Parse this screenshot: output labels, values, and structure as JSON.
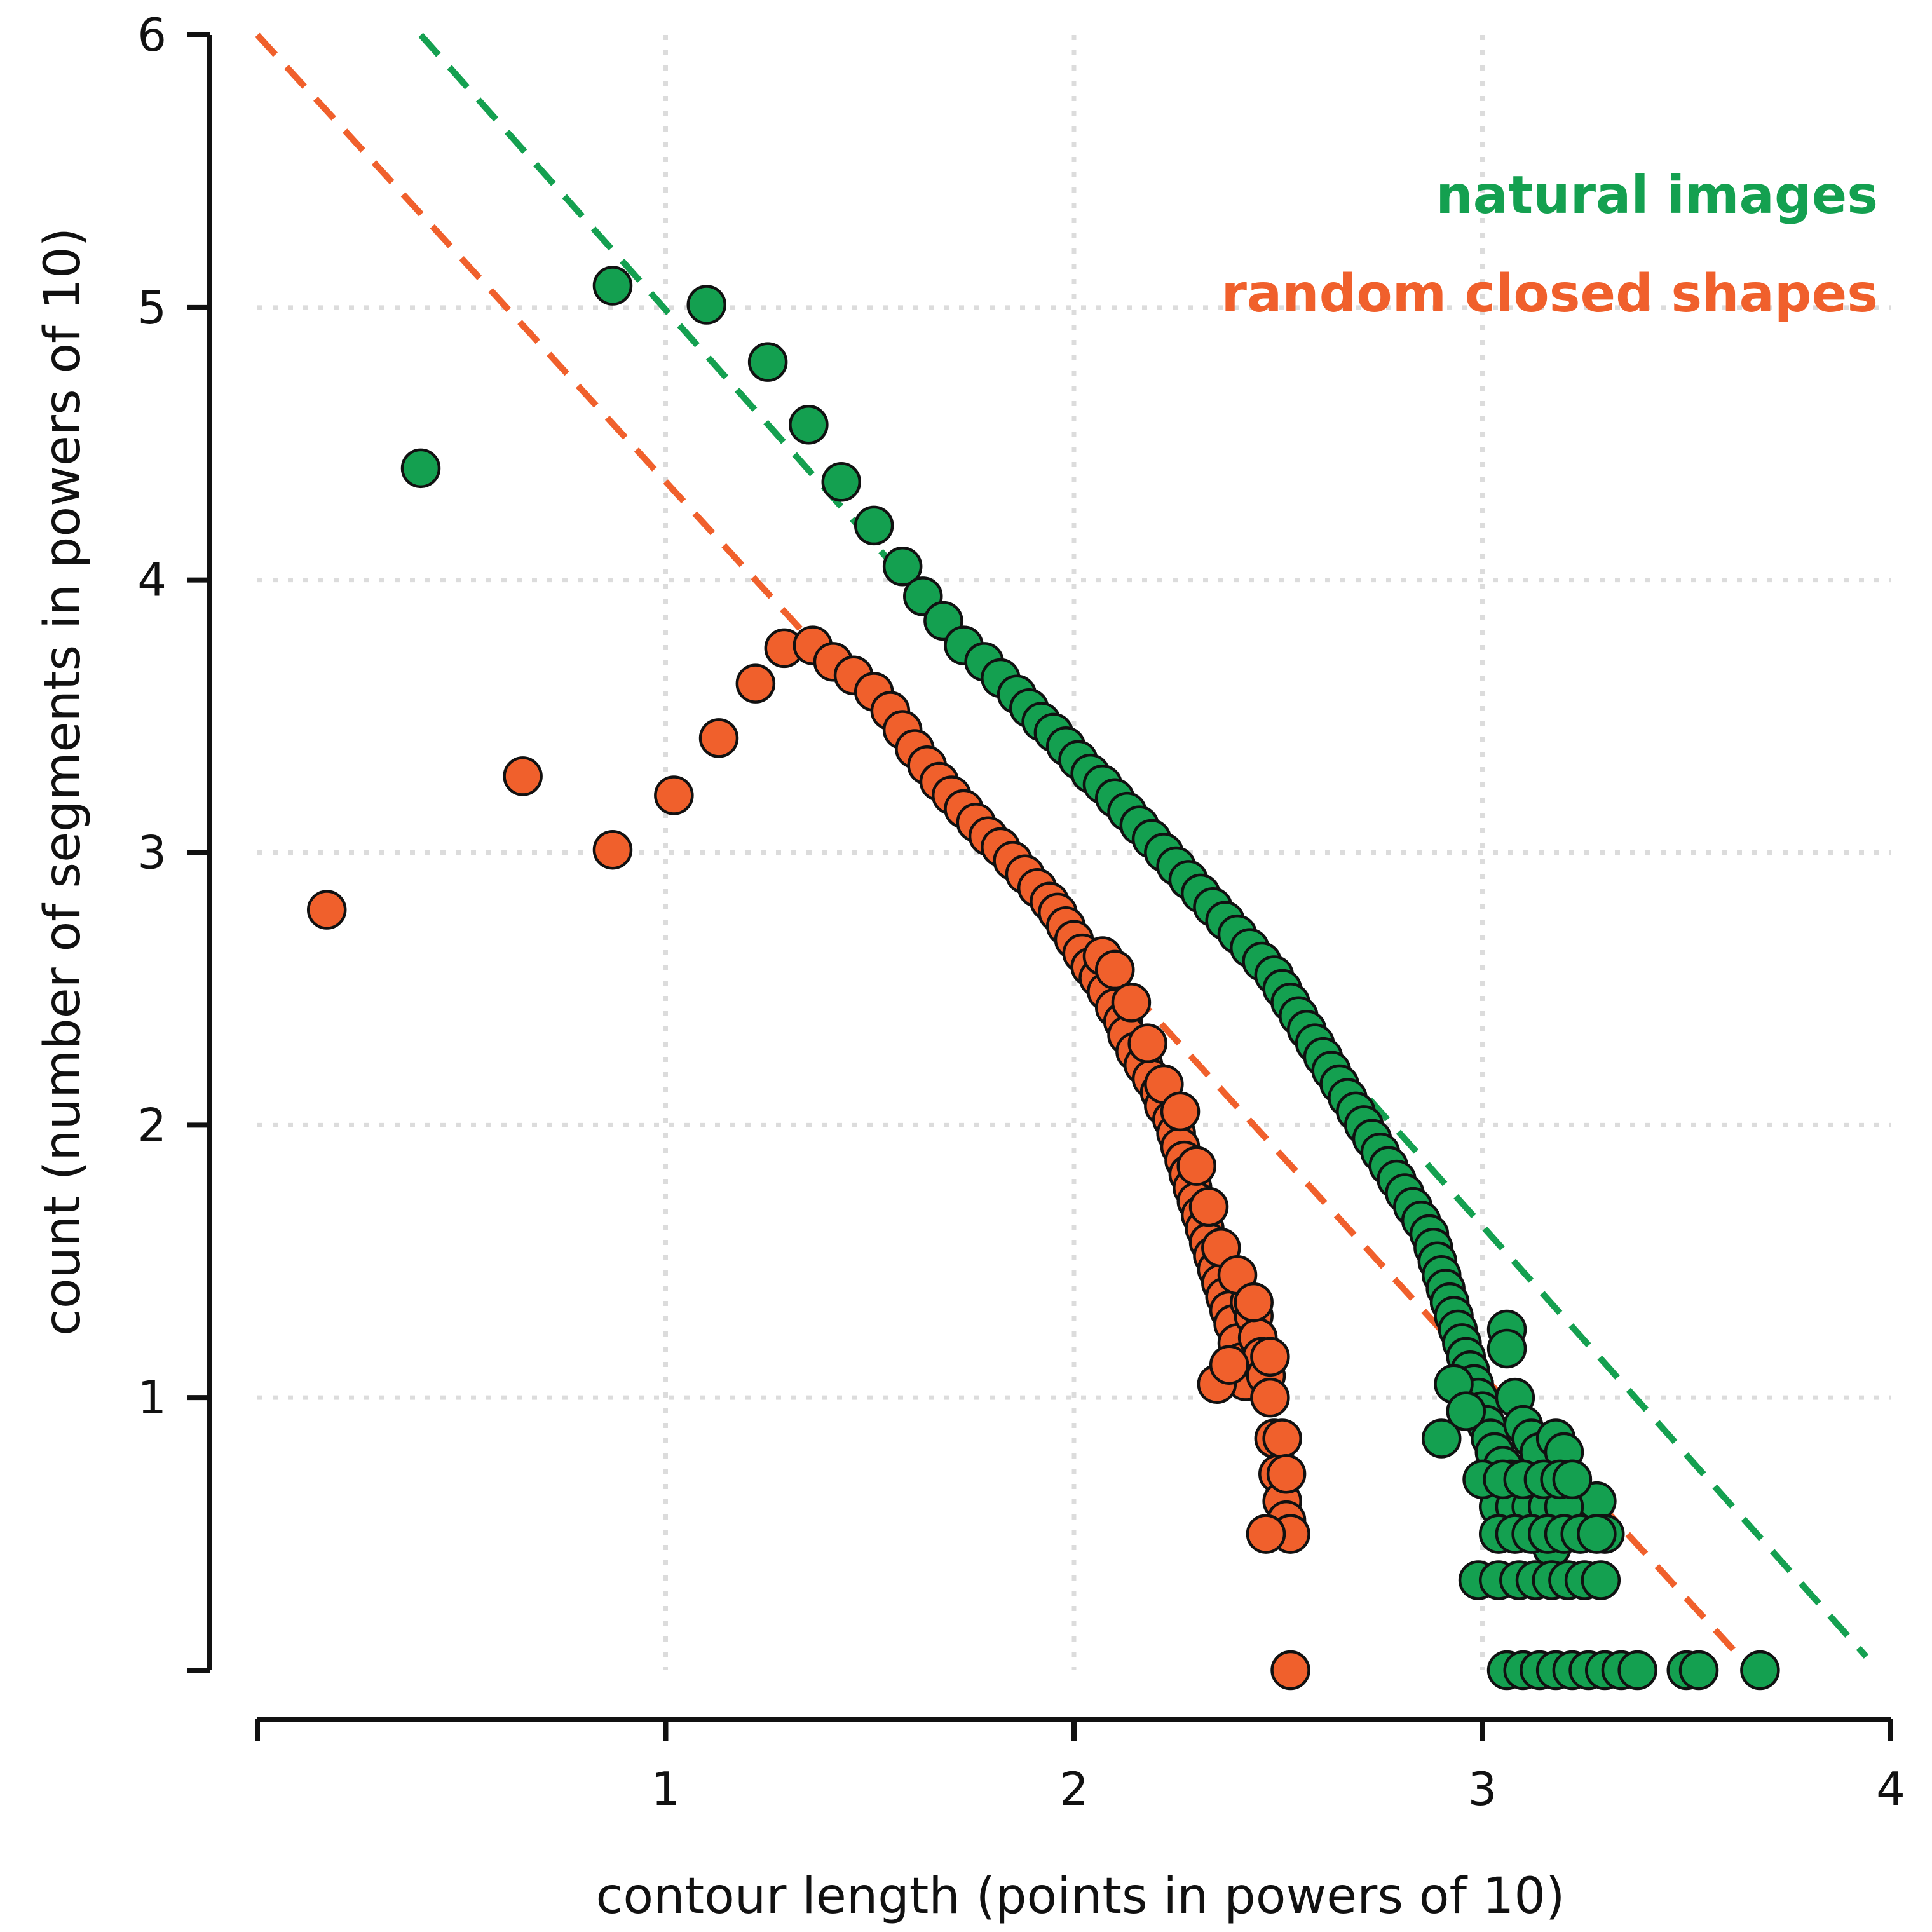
{
  "chart_data": {
    "type": "scatter",
    "xlabel": "contour length (points in powers of 10)",
    "ylabel": "count (number of segments in powers of 10)",
    "xlim": [
      0,
      4
    ],
    "ylim": [
      0,
      6
    ],
    "x_ticks": [
      "1",
      "2",
      "3",
      "4"
    ],
    "y_ticks": [
      "1",
      "2",
      "3",
      "4",
      "5",
      "6"
    ],
    "grid": true,
    "grid_style": "dotted",
    "legend_placement": "top-right",
    "series": [
      {
        "name": "natural images",
        "color": "#14a050",
        "points": [
          [
            0.4,
            4.41
          ],
          [
            0.87,
            5.08
          ],
          [
            1.1,
            5.01
          ],
          [
            1.25,
            4.8
          ],
          [
            1.35,
            4.57
          ],
          [
            1.43,
            4.36
          ],
          [
            1.51,
            4.2
          ],
          [
            1.58,
            4.05
          ],
          [
            1.63,
            3.94
          ],
          [
            1.68,
            3.85
          ],
          [
            1.73,
            3.76
          ],
          [
            1.78,
            3.7
          ],
          [
            1.82,
            3.64
          ],
          [
            1.86,
            3.58
          ],
          [
            1.89,
            3.53
          ],
          [
            1.92,
            3.48
          ],
          [
            1.95,
            3.44
          ],
          [
            1.98,
            3.39
          ],
          [
            2.01,
            3.34
          ],
          [
            2.04,
            3.29
          ],
          [
            2.07,
            3.25
          ],
          [
            2.1,
            3.2
          ],
          [
            2.13,
            3.15
          ],
          [
            2.16,
            3.1
          ],
          [
            2.19,
            3.05
          ],
          [
            2.22,
            3.0
          ],
          [
            2.25,
            2.95
          ],
          [
            2.28,
            2.9
          ],
          [
            2.31,
            2.85
          ],
          [
            2.34,
            2.8
          ],
          [
            2.37,
            2.75
          ],
          [
            2.4,
            2.7
          ],
          [
            2.43,
            2.65
          ],
          [
            2.46,
            2.6
          ],
          [
            2.49,
            2.55
          ],
          [
            2.51,
            2.5
          ],
          [
            2.53,
            2.45
          ],
          [
            2.55,
            2.4
          ],
          [
            2.57,
            2.35
          ],
          [
            2.59,
            2.3
          ],
          [
            2.61,
            2.25
          ],
          [
            2.63,
            2.2
          ],
          [
            2.65,
            2.15
          ],
          [
            2.67,
            2.1
          ],
          [
            2.69,
            2.05
          ],
          [
            2.71,
            2.0
          ],
          [
            2.73,
            1.95
          ],
          [
            2.75,
            1.9
          ],
          [
            2.77,
            1.85
          ],
          [
            2.79,
            1.8
          ],
          [
            2.81,
            1.75
          ],
          [
            2.83,
            1.7
          ],
          [
            2.85,
            1.65
          ],
          [
            2.87,
            1.6
          ],
          [
            2.88,
            1.55
          ],
          [
            2.89,
            1.5
          ],
          [
            2.9,
            1.45
          ],
          [
            2.91,
            1.4
          ],
          [
            2.92,
            1.35
          ],
          [
            2.93,
            1.3
          ],
          [
            2.94,
            1.25
          ],
          [
            2.95,
            1.2
          ],
          [
            2.96,
            1.15
          ],
          [
            2.97,
            1.1
          ],
          [
            2.98,
            1.05
          ],
          [
            2.99,
            1.0
          ],
          [
            3.0,
            0.95
          ],
          [
            3.01,
            0.9
          ],
          [
            3.02,
            0.85
          ],
          [
            3.03,
            0.8
          ],
          [
            3.05,
            0.75
          ],
          [
            3.07,
            0.7
          ],
          [
            3.09,
            0.65
          ],
          [
            3.11,
            0.6
          ],
          [
            3.13,
            0.55
          ],
          [
            3.15,
            0.5
          ],
          [
            3.17,
            0.45
          ],
          [
            2.9,
            0.85
          ],
          [
            2.93,
            1.05
          ],
          [
            2.96,
            0.95
          ],
          [
            3.06,
            1.25
          ],
          [
            3.06,
            1.18
          ],
          [
            3.08,
            1.0
          ],
          [
            3.1,
            0.9
          ],
          [
            3.12,
            0.85
          ],
          [
            3.14,
            0.8
          ],
          [
            3.18,
            0.85
          ],
          [
            3.2,
            0.8
          ],
          [
            3.22,
            0.7
          ],
          [
            3.24,
            0.6
          ],
          [
            3.26,
            0.55
          ],
          [
            3.28,
            0.62
          ],
          [
            3.3,
            0.5
          ],
          [
            3.04,
            0.6
          ],
          [
            3.08,
            0.6
          ],
          [
            3.12,
            0.6
          ],
          [
            3.16,
            0.6
          ],
          [
            3.2,
            0.6
          ],
          [
            3.04,
            0.5
          ],
          [
            3.08,
            0.5
          ],
          [
            3.12,
            0.5
          ],
          [
            3.16,
            0.5
          ],
          [
            3.2,
            0.5
          ],
          [
            3.24,
            0.5
          ],
          [
            3.28,
            0.5
          ],
          [
            3.0,
            0.7
          ],
          [
            3.05,
            0.7
          ],
          [
            3.1,
            0.7
          ],
          [
            3.15,
            0.7
          ],
          [
            3.19,
            0.7
          ],
          [
            3.22,
            0.7
          ],
          [
            2.99,
            0.33
          ],
          [
            3.04,
            0.33
          ],
          [
            3.09,
            0.33
          ],
          [
            3.13,
            0.33
          ],
          [
            3.17,
            0.33
          ],
          [
            3.21,
            0.33
          ],
          [
            3.25,
            0.33
          ],
          [
            3.29,
            0.33
          ],
          [
            3.06,
            0.0
          ],
          [
            3.1,
            0.0
          ],
          [
            3.14,
            0.0
          ],
          [
            3.18,
            0.0
          ],
          [
            3.22,
            0.0
          ],
          [
            3.26,
            0.0
          ],
          [
            3.3,
            0.0
          ],
          [
            3.34,
            0.0
          ],
          [
            3.38,
            0.0
          ],
          [
            3.5,
            0.0
          ],
          [
            3.53,
            0.0
          ],
          [
            3.68,
            0.0
          ]
        ],
        "fit_line": {
          "x": [
            0.4,
            3.94
          ],
          "y": [
            6.0,
            0.05
          ]
        }
      },
      {
        "name": "random closed shapes",
        "color": "#f0602c",
        "points": [
          [
            0.17,
            2.79
          ],
          [
            0.65,
            3.28
          ],
          [
            0.87,
            3.01
          ],
          [
            1.02,
            3.21
          ],
          [
            1.13,
            3.42
          ],
          [
            1.22,
            3.62
          ],
          [
            1.29,
            3.75
          ],
          [
            1.36,
            3.76
          ],
          [
            1.41,
            3.7
          ],
          [
            1.46,
            3.65
          ],
          [
            1.51,
            3.59
          ],
          [
            1.55,
            3.52
          ],
          [
            1.58,
            3.45
          ],
          [
            1.61,
            3.38
          ],
          [
            1.64,
            3.32
          ],
          [
            1.67,
            3.26
          ],
          [
            1.7,
            3.21
          ],
          [
            1.73,
            3.16
          ],
          [
            1.76,
            3.11
          ],
          [
            1.79,
            3.06
          ],
          [
            1.82,
            3.02
          ],
          [
            1.85,
            2.97
          ],
          [
            1.88,
            2.92
          ],
          [
            1.91,
            2.87
          ],
          [
            1.94,
            2.82
          ],
          [
            1.96,
            2.78
          ],
          [
            1.98,
            2.73
          ],
          [
            2.0,
            2.68
          ],
          [
            2.02,
            2.63
          ],
          [
            2.04,
            2.58
          ],
          [
            2.06,
            2.54
          ],
          [
            2.08,
            2.49
          ],
          [
            2.1,
            2.43
          ],
          [
            2.12,
            2.38
          ],
          [
            2.13,
            2.33
          ],
          [
            2.15,
            2.27
          ],
          [
            2.17,
            2.22
          ],
          [
            2.19,
            2.17
          ],
          [
            2.21,
            2.12
          ],
          [
            2.22,
            2.07
          ],
          [
            2.24,
            2.02
          ],
          [
            2.25,
            1.97
          ],
          [
            2.26,
            1.92
          ],
          [
            2.27,
            1.87
          ],
          [
            2.28,
            1.82
          ],
          [
            2.29,
            1.77
          ],
          [
            2.3,
            1.72
          ],
          [
            2.31,
            1.67
          ],
          [
            2.32,
            1.62
          ],
          [
            2.33,
            1.57
          ],
          [
            2.34,
            1.52
          ],
          [
            2.35,
            1.47
          ],
          [
            2.36,
            1.42
          ],
          [
            2.37,
            1.37
          ],
          [
            2.38,
            1.32
          ],
          [
            2.39,
            1.27
          ],
          [
            2.4,
            1.2
          ],
          [
            2.41,
            1.13
          ],
          [
            2.42,
            1.06
          ],
          [
            2.43,
            1.35
          ],
          [
            2.44,
            1.3
          ],
          [
            2.45,
            1.22
          ],
          [
            2.46,
            1.15
          ],
          [
            2.47,
            1.08
          ],
          [
            2.48,
            1.0
          ],
          [
            2.49,
            0.85
          ],
          [
            2.5,
            0.72
          ],
          [
            2.51,
            0.62
          ],
          [
            2.52,
            0.55
          ],
          [
            2.53,
            0.5
          ],
          [
            2.35,
            1.05
          ],
          [
            2.38,
            1.12
          ],
          [
            2.47,
            0.5
          ],
          [
            2.51,
            0.85
          ],
          [
            2.52,
            0.72
          ],
          [
            2.53,
            0.0
          ],
          [
            2.07,
            2.62
          ],
          [
            2.1,
            2.57
          ],
          [
            2.14,
            2.45
          ],
          [
            2.18,
            2.3
          ],
          [
            2.22,
            2.15
          ],
          [
            2.26,
            2.05
          ],
          [
            2.3,
            1.85
          ],
          [
            2.33,
            1.7
          ],
          [
            2.36,
            1.55
          ],
          [
            2.4,
            1.45
          ],
          [
            2.44,
            1.35
          ],
          [
            2.48,
            1.15
          ]
        ],
        "fit_line": {
          "x": [
            0.0,
            3.63
          ],
          "y": [
            6.0,
            0.05
          ]
        }
      }
    ]
  }
}
